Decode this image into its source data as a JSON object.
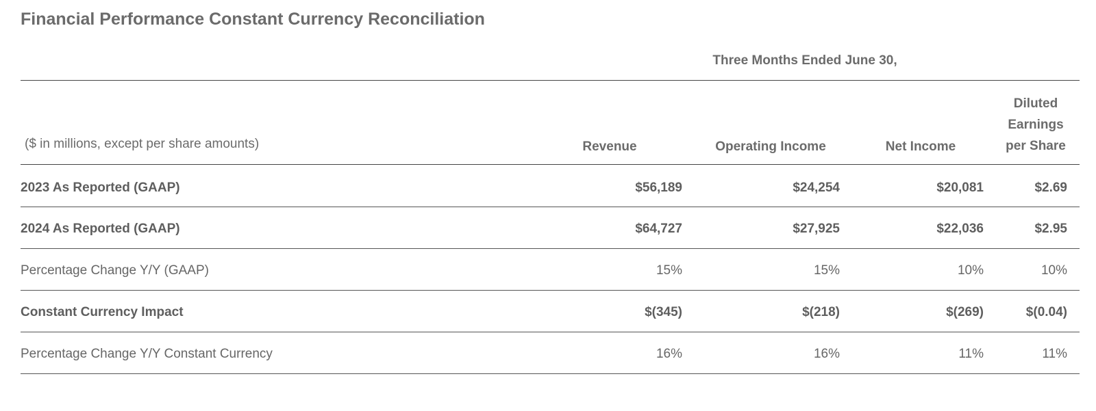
{
  "title": "Financial Performance Constant Currency Reconciliation",
  "period_header": "Three Months Ended June 30,",
  "units_label": "($ in millions, except per share amounts)",
  "columns": {
    "revenue": "Revenue",
    "operating_income": "Operating Income",
    "net_income": "Net Income",
    "eps_line1": "Diluted",
    "eps_line2": "Earnings",
    "eps_line3": "per Share"
  },
  "rows": [
    {
      "label": "2023 As Reported (GAAP)",
      "revenue": "$56,189",
      "operating_income": "$24,254",
      "net_income": "$20,081",
      "eps": "$2.69"
    },
    {
      "label": "2024 As Reported (GAAP)",
      "revenue": "$64,727",
      "operating_income": "$27,925",
      "net_income": "$22,036",
      "eps": "$2.95"
    },
    {
      "label": "Percentage Change Y/Y (GAAP)",
      "revenue": "15%",
      "operating_income": "15%",
      "net_income": "10%",
      "eps": "10%"
    },
    {
      "label": "Constant Currency Impact",
      "revenue": "$(345)",
      "operating_income": "$(218)",
      "net_income": "$(269)",
      "eps": "$(0.04)"
    },
    {
      "label": "Percentage Change Y/Y Constant Currency",
      "revenue": "16%",
      "operating_income": "16%",
      "net_income": "11%",
      "eps": "11%"
    }
  ]
}
